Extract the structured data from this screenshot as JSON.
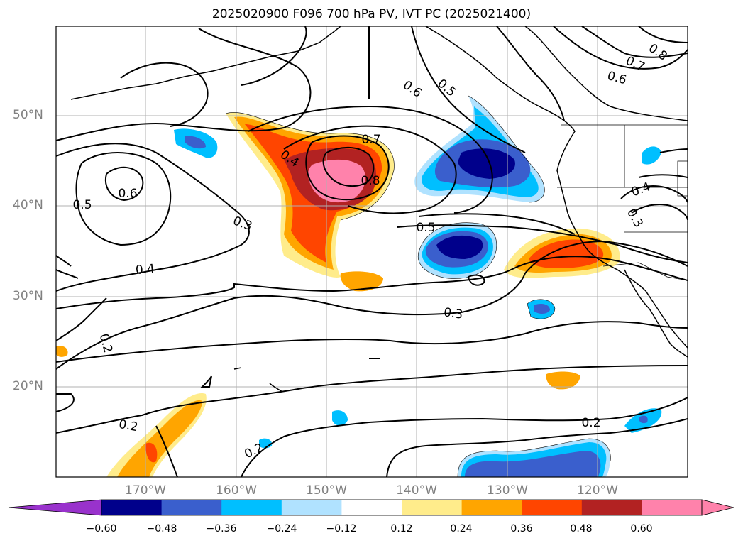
{
  "title": "2025020900 F096 700 hPa PV, IVT PC (2025021400)",
  "lat_labels": [
    "50°N",
    "40°N",
    "30°N",
    "20°N"
  ],
  "lon_labels": [
    "170°W",
    "160°W",
    "150°W",
    "140°W",
    "130°W",
    "120°W"
  ],
  "contour_labels": [
    "0.8",
    "0.7",
    "0.6",
    "0.5",
    "0.6",
    "0.7",
    "0.8",
    "0.6",
    "0.5",
    "0.4",
    "0.3",
    "0.4",
    "0.3",
    "0.4",
    "0.5",
    "0.3",
    "0.2",
    "0.2",
    "0.2",
    "0.2"
  ],
  "colorbar": {
    "ticks": [
      "−0.60",
      "−0.48",
      "−0.36",
      "−0.24",
      "−0.12",
      "0.12",
      "0.24",
      "0.36",
      "0.48",
      "0.60"
    ],
    "colors": [
      "#9932cc",
      "#00008b",
      "#3a5fcd",
      "#00bfff",
      "#b0e2ff",
      "#ffffff",
      "#ffec8b",
      "#ffa500",
      "#ff4500",
      "#b22222",
      "#ff82ab",
      "#ff82ab"
    ]
  }
}
